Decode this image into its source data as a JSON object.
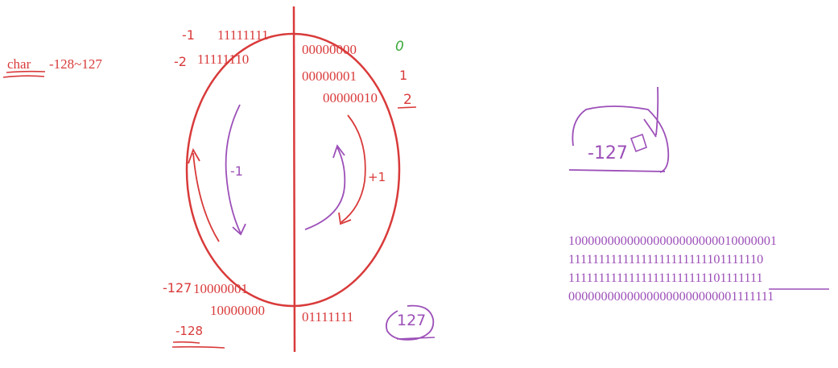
{
  "title": {
    "keyword": "char",
    "range": "-128~127"
  },
  "left_column": {
    "label_minus1": "-1",
    "bits_minus1": "11111111",
    "label_minus2": "-2",
    "bits_minus2": "11111110",
    "label_minus127": "-127",
    "bits_minus127": "10000001",
    "bits_minus128": "10000000",
    "label_minus128": "-128",
    "arrow_label": "-1"
  },
  "right_column": {
    "bits_0": "00000000",
    "label_0": "0",
    "bits_1": "00000001",
    "label_1": "1",
    "bits_2": "00000010",
    "label_2": "2",
    "bits_127": "01111111",
    "label_127": "127",
    "arrow_label": "+1"
  },
  "box_note": {
    "label": "-127"
  },
  "binary_block": {
    "rows": [
      "10000000000000000000000010000001",
      "11111111111111111111111101111110",
      "11111111111111111111111101111111",
      "00000000000000000000000001111111"
    ]
  },
  "colors": {
    "red_ink": "#d93a3a",
    "purple_ink": "#9c4fb8",
    "green_ink": "#3aa83a"
  }
}
